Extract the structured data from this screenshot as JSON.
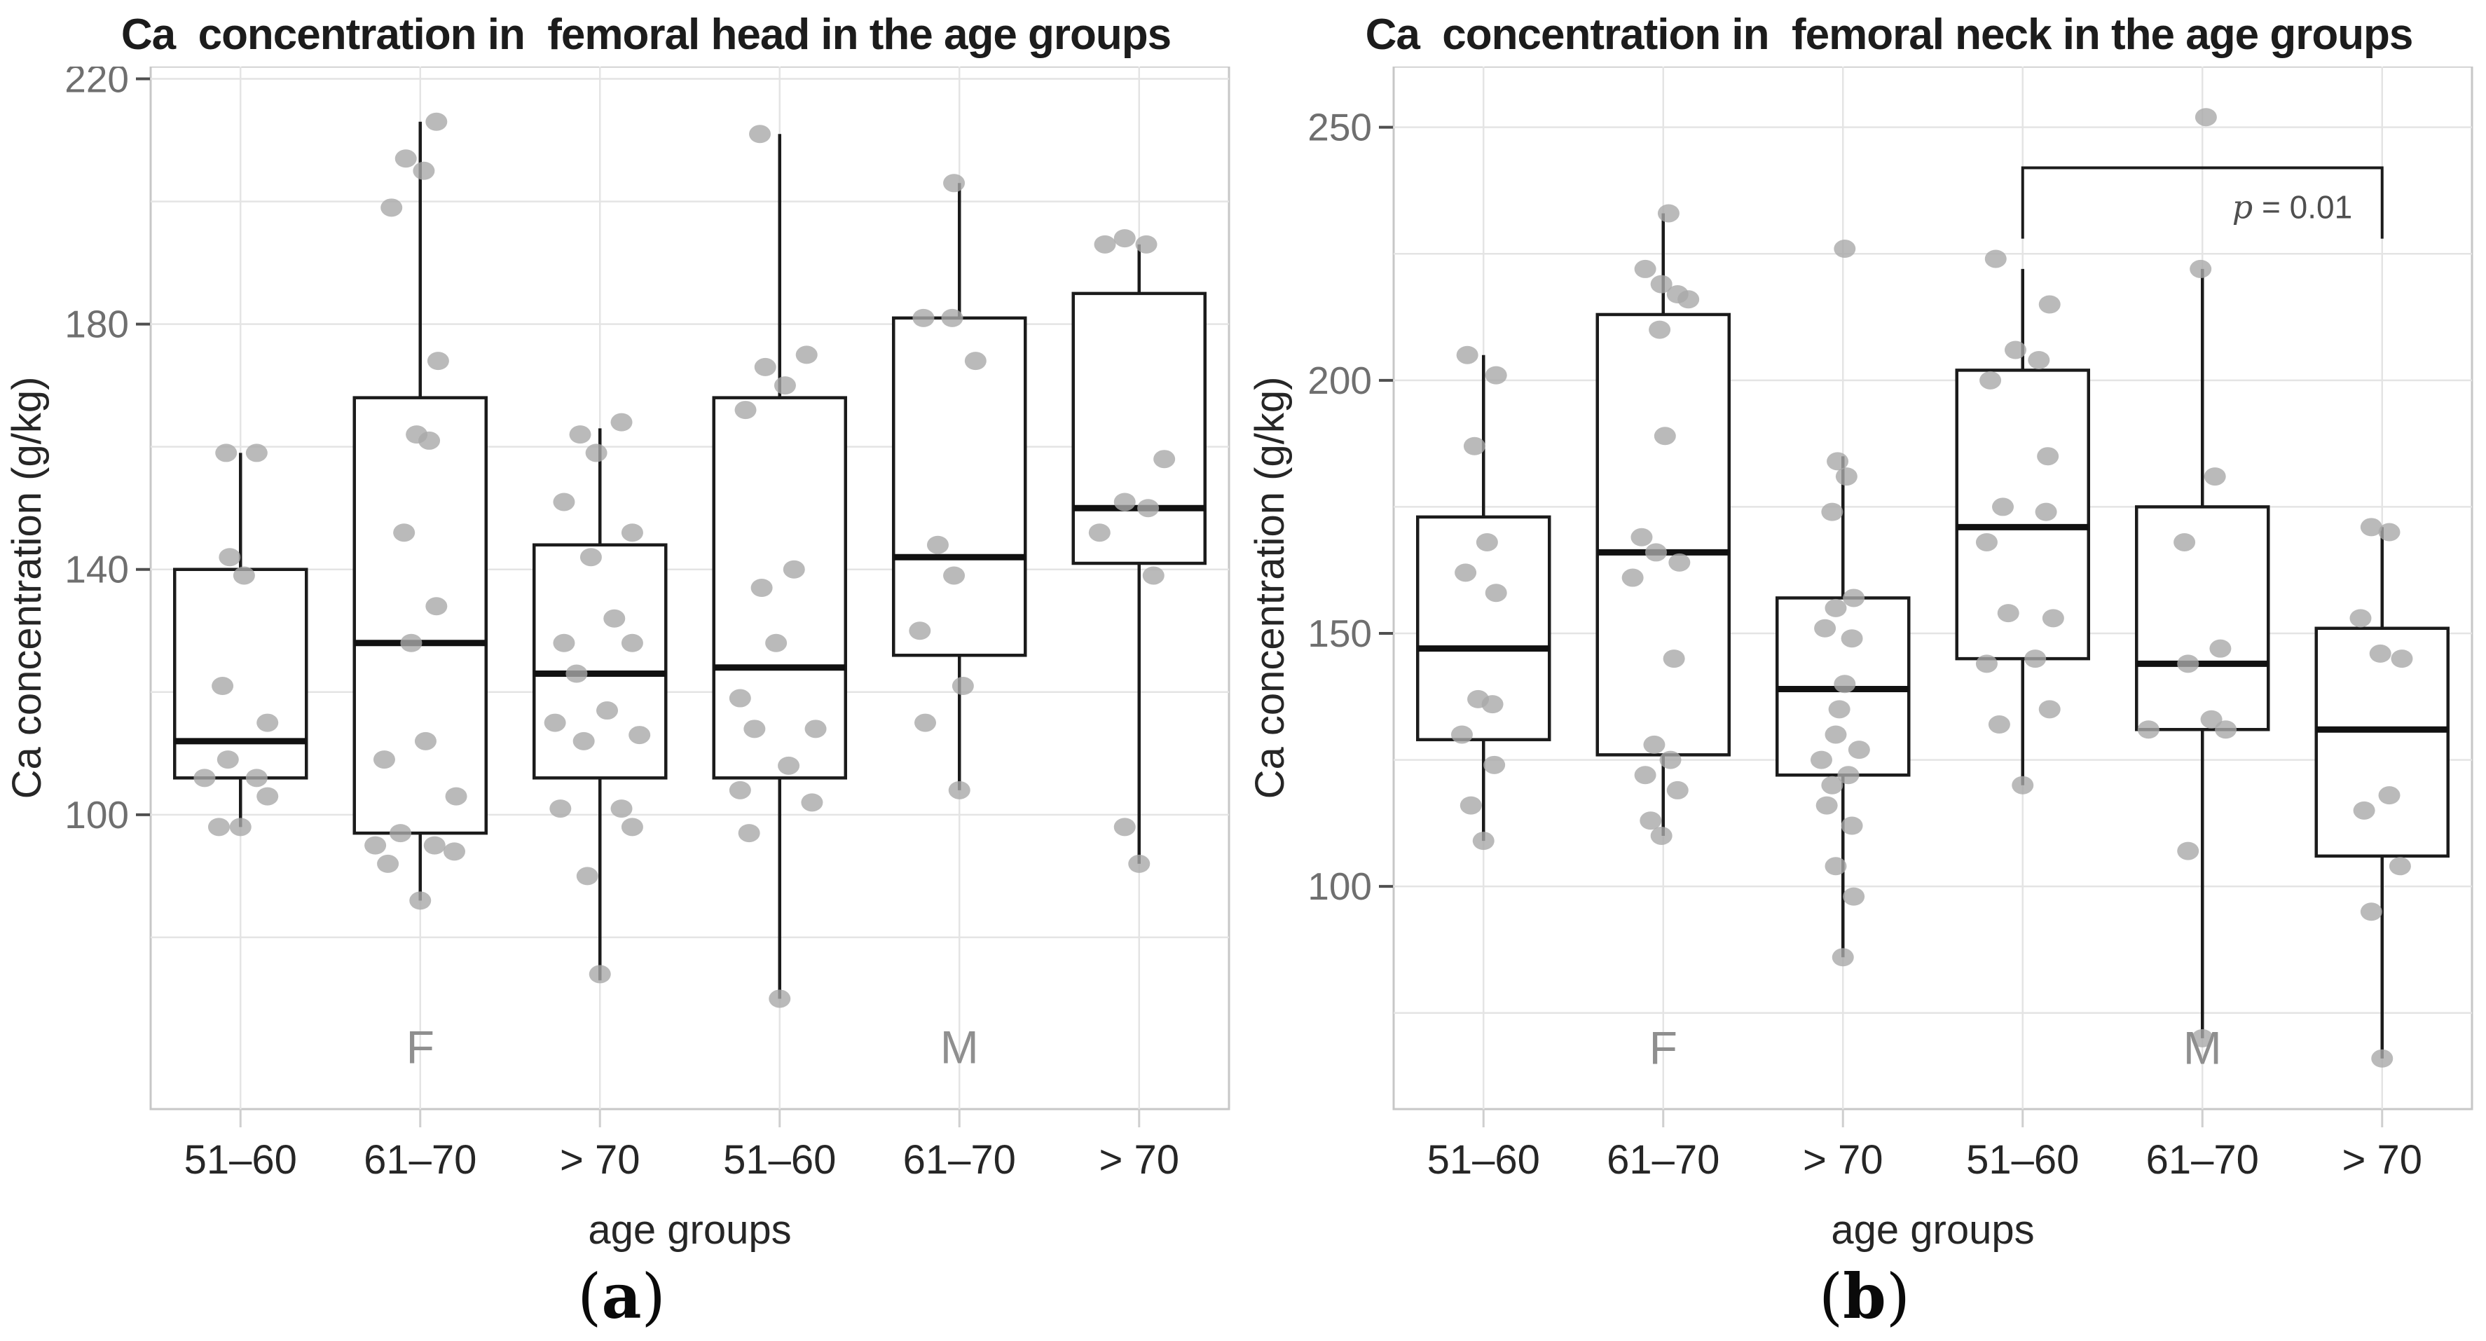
{
  "page": {
    "background": "#ffffff",
    "kind": "two-panel boxplot figure"
  },
  "colors": {
    "panel_border": "#c7c7c7",
    "gridline": "#e4e4e4",
    "box_stroke": "#1b1b1b",
    "median_stroke": "#111111",
    "whisker_stroke": "#1b1b1b",
    "point_fill": "#a9a9a9",
    "y_tick_text": "#6f6f6f",
    "y_tick_mark": "#4f4f4f",
    "x_tick_mark": "#cfcfcf",
    "axis_text": "#262626",
    "sex_label_text": "#8f8f8f",
    "p_label_text": "#4f4f4f",
    "bracket_stroke": "#1b1b1b"
  },
  "chart_data": [
    {
      "type": "boxplot",
      "panel": "a",
      "title": "Ca  concentration in  femoral head in the age groups",
      "xlabel": "age groups",
      "ylabel": "Ca concentration  (g/kg)",
      "ylim": [
        52,
        222
      ],
      "yticks": [
        100,
        140,
        180,
        220
      ],
      "grid": {
        "y_min": 80,
        "y_max": 220,
        "y_step": 20
      },
      "categories": [
        "51–60",
        "61–70",
        "> 70",
        "51–60",
        "61–70",
        "> 70"
      ],
      "sex_labels": [
        {
          "text": "F",
          "slot": 1,
          "value": 62
        },
        {
          "text": "M",
          "slot": 4,
          "value": 62
        }
      ],
      "caption": {
        "open": "(",
        "letter": "a",
        "close": ")"
      },
      "legend": "none",
      "groups": [
        {
          "category": "51–60",
          "sex": "F",
          "min": 98,
          "q1": 106,
          "median": 112,
          "q3": 140,
          "max": 159,
          "points": [
            [
              159,
              -0.08
            ],
            [
              159,
              0.09
            ],
            [
              142,
              -0.06
            ],
            [
              139,
              0.02
            ],
            [
              121,
              -0.1
            ],
            [
              115,
              0.15
            ],
            [
              109,
              -0.07
            ],
            [
              106,
              -0.2
            ],
            [
              106,
              0.09
            ],
            [
              103,
              0.15
            ],
            [
              98,
              -0.12
            ],
            [
              98,
              0.0
            ]
          ]
        },
        {
          "category": "61–70",
          "sex": "F",
          "min": 86,
          "q1": 97,
          "median": 128,
          "q3": 168,
          "max": 213,
          "points": [
            [
              213,
              0.09
            ],
            [
              207,
              -0.08
            ],
            [
              205,
              0.02
            ],
            [
              199,
              -0.16
            ],
            [
              174,
              0.1
            ],
            [
              162,
              -0.02
            ],
            [
              161,
              0.05
            ],
            [
              146,
              -0.09
            ],
            [
              134,
              0.09
            ],
            [
              128,
              -0.05
            ],
            [
              112,
              0.03
            ],
            [
              109,
              -0.2
            ],
            [
              103,
              0.2
            ],
            [
              97,
              -0.11
            ],
            [
              95,
              -0.25
            ],
            [
              95,
              0.08
            ],
            [
              94,
              0.19
            ],
            [
              92,
              -0.18
            ],
            [
              86,
              0.0
            ]
          ]
        },
        {
          "category": "> 70",
          "sex": "F",
          "min": 73,
          "q1": 106,
          "median": 123,
          "q3": 144,
          "max": 163,
          "points": [
            [
              164,
              0.12
            ],
            [
              162,
              -0.11
            ],
            [
              159,
              -0.02
            ],
            [
              151,
              -0.2
            ],
            [
              146,
              0.18
            ],
            [
              142,
              -0.05
            ],
            [
              132,
              0.08
            ],
            [
              128,
              0.18
            ],
            [
              128,
              -0.2
            ],
            [
              123,
              -0.13
            ],
            [
              117,
              0.04
            ],
            [
              115,
              -0.25
            ],
            [
              113,
              0.22
            ],
            [
              112,
              -0.09
            ],
            [
              101,
              0.12
            ],
            [
              101,
              -0.22
            ],
            [
              98,
              0.18
            ],
            [
              90,
              -0.07
            ],
            [
              74,
              0.0
            ]
          ]
        },
        {
          "category": "51–60",
          "sex": "M",
          "min": 70,
          "q1": 106,
          "median": 124,
          "q3": 168,
          "max": 211,
          "points": [
            [
              211,
              -0.11
            ],
            [
              175,
              0.15
            ],
            [
              173,
              -0.08
            ],
            [
              170,
              0.03
            ],
            [
              166,
              -0.19
            ],
            [
              140,
              0.08
            ],
            [
              137,
              -0.1
            ],
            [
              128,
              -0.02
            ],
            [
              119,
              -0.22
            ],
            [
              114,
              -0.14
            ],
            [
              114,
              0.2
            ],
            [
              108,
              0.05
            ],
            [
              104,
              -0.22
            ],
            [
              102,
              0.18
            ],
            [
              97,
              -0.17
            ],
            [
              70,
              0.0
            ]
          ]
        },
        {
          "category": "61–70",
          "sex": "M",
          "min": 104,
          "q1": 126,
          "median": 142,
          "q3": 181,
          "max": 203,
          "points": [
            [
              203,
              -0.03
            ],
            [
              181,
              -0.2
            ],
            [
              181,
              -0.04
            ],
            [
              174,
              0.09
            ],
            [
              144,
              -0.12
            ],
            [
              139,
              -0.03
            ],
            [
              130,
              -0.22
            ],
            [
              121,
              0.02
            ],
            [
              115,
              -0.19
            ],
            [
              104,
              0.0
            ]
          ]
        },
        {
          "category": "> 70",
          "sex": "M",
          "min": 92,
          "q1": 141,
          "median": 150,
          "q3": 185,
          "max": 193,
          "points": [
            [
              193,
              -0.19
            ],
            [
              194,
              -0.08
            ],
            [
              193,
              0.04
            ],
            [
              158,
              0.14
            ],
            [
              151,
              -0.08
            ],
            [
              150,
              0.05
            ],
            [
              146,
              -0.22
            ],
            [
              139,
              0.08
            ],
            [
              98,
              -0.08
            ],
            [
              92,
              0.0
            ]
          ]
        }
      ]
    },
    {
      "type": "boxplot",
      "panel": "b",
      "title": "Ca  concentration in  femoral neck in the age groups",
      "xlabel": "age groups",
      "ylabel": "Ca concentration  (g/kg)",
      "ylim": [
        56,
        262
      ],
      "yticks": [
        100,
        150,
        200,
        250
      ],
      "grid": {
        "y_min": 75,
        "y_max": 250,
        "y_step": 25
      },
      "categories": [
        "51–60",
        "61–70",
        "> 70",
        "51–60",
        "61–70",
        "> 70"
      ],
      "sex_labels": [
        {
          "text": "F",
          "slot": 1,
          "value": 68
        },
        {
          "text": "M",
          "slot": 4,
          "value": 68
        }
      ],
      "caption": {
        "open": "(",
        "letter": "b",
        "close": ")"
      },
      "legend": "none",
      "annotation": {
        "label": "p = 0.01",
        "from_slot": 3,
        "to_slot": 5,
        "bar_value": 242,
        "tick_value": 228,
        "label_value": 232,
        "label_slot": 4.5
      },
      "groups": [
        {
          "category": "51–60",
          "sex": "F",
          "min": 109,
          "q1": 129,
          "median": 147,
          "q3": 173,
          "max": 205,
          "points": [
            [
              205,
              -0.09
            ],
            [
              201,
              0.07
            ],
            [
              187,
              -0.05
            ],
            [
              168,
              0.02
            ],
            [
              162,
              -0.1
            ],
            [
              158,
              0.07
            ],
            [
              137,
              -0.03
            ],
            [
              136,
              0.05
            ],
            [
              130,
              -0.12
            ],
            [
              124,
              0.06
            ],
            [
              116,
              -0.07
            ],
            [
              109,
              0.0
            ]
          ]
        },
        {
          "category": "61–70",
          "sex": "F",
          "min": 110,
          "q1": 126,
          "median": 166,
          "q3": 213,
          "max": 233,
          "points": [
            [
              233,
              0.03
            ],
            [
              222,
              -0.1
            ],
            [
              219,
              -0.01
            ],
            [
              217,
              0.08
            ],
            [
              216,
              0.14
            ],
            [
              210,
              -0.02
            ],
            [
              189,
              0.01
            ],
            [
              169,
              -0.12
            ],
            [
              166,
              -0.04
            ],
            [
              164,
              0.09
            ],
            [
              161,
              -0.17
            ],
            [
              145,
              0.06
            ],
            [
              128,
              -0.05
            ],
            [
              125,
              0.04
            ],
            [
              122,
              -0.1
            ],
            [
              119,
              0.08
            ],
            [
              113,
              -0.07
            ],
            [
              110,
              -0.01
            ]
          ]
        },
        {
          "category": "> 70",
          "sex": "F",
          "min": 86,
          "q1": 122,
          "median": 139,
          "q3": 157,
          "max": 185,
          "points": [
            [
              226,
              0.01
            ],
            [
              184,
              -0.03
            ],
            [
              181,
              0.02
            ],
            [
              174,
              -0.06
            ],
            [
              157,
              0.06
            ],
            [
              155,
              -0.04
            ],
            [
              151,
              -0.1
            ],
            [
              149,
              0.05
            ],
            [
              140,
              0.01
            ],
            [
              135,
              -0.02
            ],
            [
              130,
              -0.04
            ],
            [
              127,
              0.09
            ],
            [
              125,
              -0.12
            ],
            [
              122,
              0.03
            ],
            [
              120,
              -0.06
            ],
            [
              116,
              -0.09
            ],
            [
              112,
              0.05
            ],
            [
              104,
              -0.04
            ],
            [
              98,
              0.06
            ],
            [
              86,
              0.0
            ]
          ]
        },
        {
          "category": "51–60",
          "sex": "M",
          "min": 120,
          "q1": 145,
          "median": 171,
          "q3": 202,
          "max": 222,
          "points": [
            [
              224,
              -0.15
            ],
            [
              215,
              0.15
            ],
            [
              206,
              -0.04
            ],
            [
              204,
              0.09
            ],
            [
              200,
              -0.18
            ],
            [
              185,
              0.14
            ],
            [
              175,
              -0.11
            ],
            [
              174,
              0.13
            ],
            [
              168,
              -0.2
            ],
            [
              154,
              -0.08
            ],
            [
              153,
              0.17
            ],
            [
              145,
              0.07
            ],
            [
              144,
              -0.2
            ],
            [
              135,
              0.15
            ],
            [
              132,
              -0.13
            ],
            [
              120,
              0.0
            ]
          ]
        },
        {
          "category": "61–70",
          "sex": "M",
          "min": 70,
          "q1": 131,
          "median": 144,
          "q3": 175,
          "max": 222,
          "points": [
            [
              252,
              0.02
            ],
            [
              222,
              -0.01
            ],
            [
              181,
              0.07
            ],
            [
              168,
              -0.1
            ],
            [
              147,
              0.1
            ],
            [
              144,
              -0.08
            ],
            [
              133,
              0.05
            ],
            [
              131,
              0.13
            ],
            [
              131,
              -0.3
            ],
            [
              107,
              -0.08
            ],
            [
              70,
              0.0
            ]
          ]
        },
        {
          "category": "> 70",
          "sex": "M",
          "min": 66,
          "q1": 106,
          "median": 131,
          "q3": 151,
          "max": 171,
          "points": [
            [
              171,
              -0.06
            ],
            [
              170,
              0.04
            ],
            [
              153,
              -0.12
            ],
            [
              146,
              -0.01
            ],
            [
              145,
              0.11
            ],
            [
              118,
              0.04
            ],
            [
              115,
              -0.1
            ],
            [
              104,
              0.1
            ],
            [
              95,
              -0.06
            ],
            [
              66,
              0.0
            ]
          ]
        }
      ]
    }
  ]
}
